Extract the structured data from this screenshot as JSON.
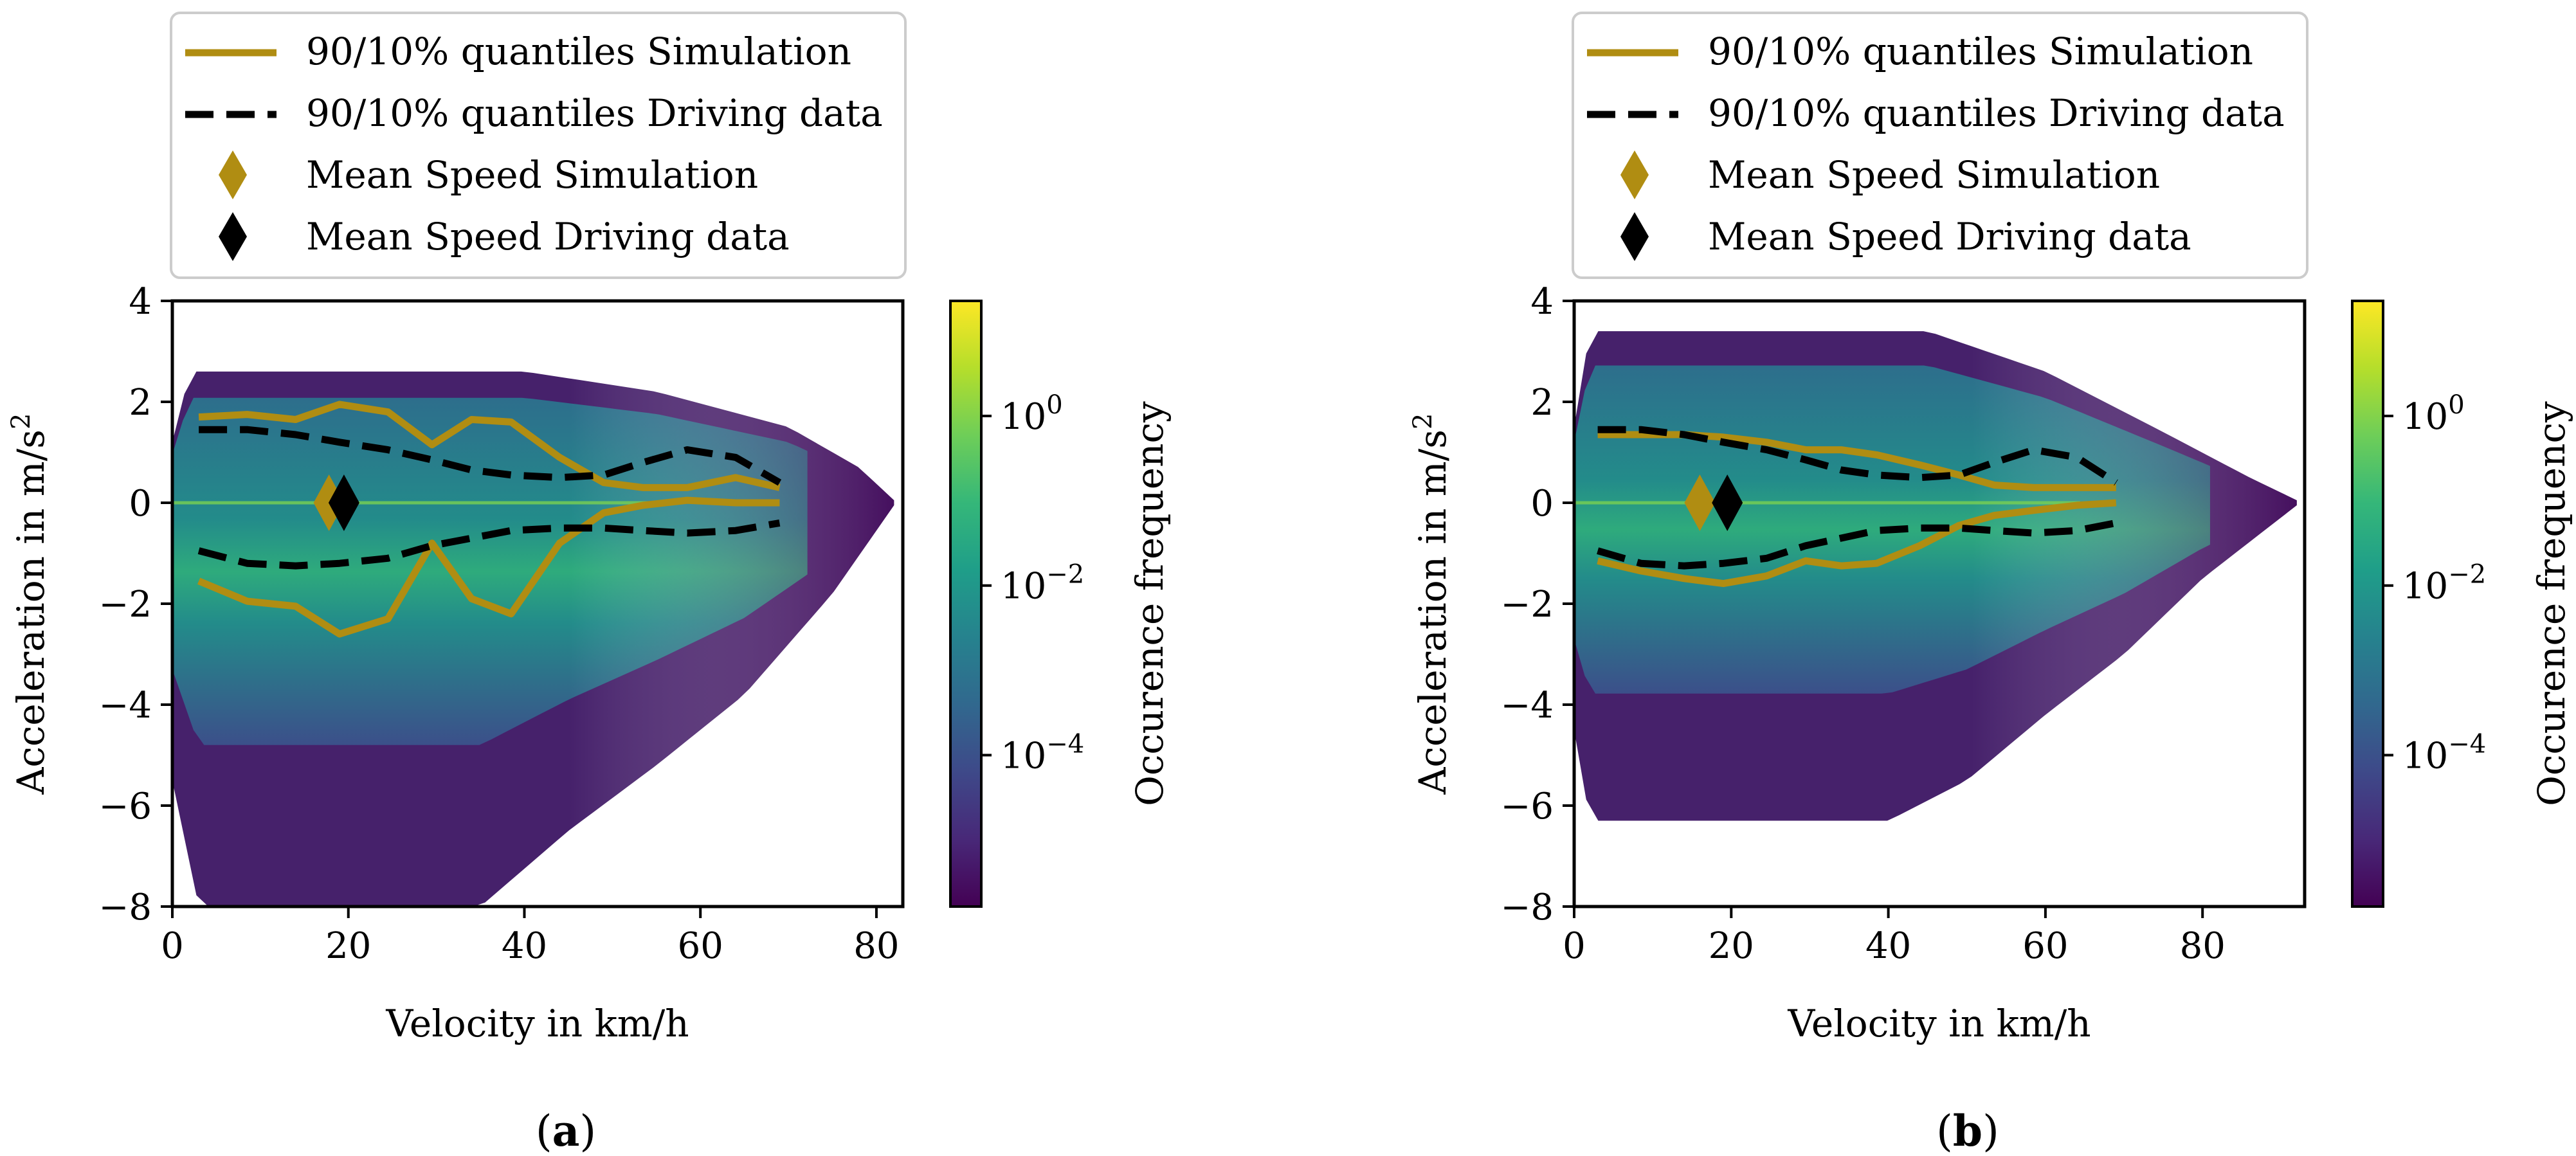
{
  "colors": {
    "simulation": "#B08D12",
    "driving": "#000000",
    "colormap": [
      "#440154",
      "#482878",
      "#3e4989",
      "#31688e",
      "#26828e",
      "#1f9e89",
      "#35b779",
      "#6ece58",
      "#b5de2b",
      "#fde725"
    ]
  },
  "chart_data": [
    {
      "type": "heatmap",
      "panel_label_open": "(",
      "panel_label_letter": "a",
      "panel_label_close": ")",
      "xlabel": "Velocity in km/h",
      "ylabel_main": "Acceleration in m/s",
      "ylabel_sup": "2",
      "xlim": [
        0,
        83
      ],
      "ylim": [
        -8,
        4
      ],
      "xticks": [
        0,
        20,
        40,
        60,
        80
      ],
      "yticks": [
        -8,
        -6,
        -4,
        -2,
        0,
        2,
        4
      ],
      "density": {
        "vmax": 82,
        "accel_max": [
          [
            0,
            1.2
          ],
          [
            2,
            2.6
          ],
          [
            40,
            2.6
          ],
          [
            55,
            2.2
          ],
          [
            70,
            1.5
          ],
          [
            78,
            0.7
          ],
          [
            82,
            0.05
          ]
        ],
        "accel_min": [
          [
            0,
            -5.5
          ],
          [
            3,
            -8.0
          ],
          [
            35,
            -8.0
          ],
          [
            45,
            -6.5
          ],
          [
            55,
            -5.2
          ],
          [
            65,
            -3.8
          ],
          [
            75,
            -1.8
          ],
          [
            82,
            -0.05
          ]
        ]
      },
      "colorbar": {
        "label": "Occurence frequency",
        "scale": "log",
        "ticks": [
          {
            "base": "10",
            "exp": "0",
            "frac": 0.81
          },
          {
            "base": "10",
            "exp": "−2",
            "frac": 0.53
          },
          {
            "base": "10",
            "exp": "−4",
            "frac": 0.25
          }
        ]
      },
      "legend": {
        "entries": [
          "90/10% quantiles Simulation",
          "90/10% quantiles Driving data",
          "Mean Speed Simulation",
          "Mean Speed Driving data"
        ]
      },
      "series": [
        {
          "name": "90% quantile Simulation",
          "style": "solid",
          "color": "simulation",
          "x": [
            3,
            8.5,
            14,
            19,
            24.5,
            29.5,
            34,
            38.5,
            44,
            49,
            53.5,
            58.5,
            64,
            69
          ],
          "y": [
            1.7,
            1.75,
            1.65,
            1.95,
            1.8,
            1.15,
            1.65,
            1.6,
            0.9,
            0.4,
            0.3,
            0.3,
            0.5,
            0.3
          ]
        },
        {
          "name": "10% quantile Simulation",
          "style": "solid",
          "color": "simulation",
          "x": [
            3,
            8.5,
            14,
            19,
            24.5,
            29.5,
            34,
            38.5,
            44,
            49,
            53.5,
            58.5,
            64,
            69
          ],
          "y": [
            -1.55,
            -1.95,
            -2.05,
            -2.6,
            -2.3,
            -0.8,
            -1.9,
            -2.2,
            -0.8,
            -0.2,
            -0.05,
            0.05,
            0.0,
            0.0
          ]
        },
        {
          "name": "90% quantile Driving data",
          "style": "dashed",
          "color": "driving",
          "x": [
            3,
            8.5,
            14,
            19,
            24.5,
            29.5,
            34,
            38.5,
            44,
            49,
            53.5,
            58.5,
            64,
            69
          ],
          "y": [
            1.45,
            1.45,
            1.35,
            1.2,
            1.05,
            0.85,
            0.65,
            0.55,
            0.5,
            0.55,
            0.8,
            1.05,
            0.9,
            0.4
          ]
        },
        {
          "name": "10% quantile Driving data",
          "style": "dashed",
          "color": "driving",
          "x": [
            3,
            8.5,
            14,
            19,
            24.5,
            29.5,
            34,
            38.5,
            44,
            49,
            53.5,
            58.5,
            64,
            69
          ],
          "y": [
            -0.95,
            -1.2,
            -1.25,
            -1.2,
            -1.1,
            -0.85,
            -0.7,
            -0.55,
            -0.5,
            -0.5,
            -0.55,
            -0.6,
            -0.55,
            -0.4
          ]
        }
      ],
      "markers": [
        {
          "name": "Mean Speed Simulation",
          "color": "simulation",
          "x": 17.8,
          "y": 0
        },
        {
          "name": "Mean Speed Driving data",
          "color": "driving",
          "x": 19.5,
          "y": 0
        }
      ]
    },
    {
      "type": "heatmap",
      "panel_label_open": "(",
      "panel_label_letter": "b",
      "panel_label_close": ")",
      "xlabel": "Velocity in km/h",
      "ylabel_main": "Acceleration in m/s",
      "ylabel_sup": "2",
      "xlim": [
        0,
        93
      ],
      "ylim": [
        -8,
        4
      ],
      "xticks": [
        0,
        20,
        40,
        60,
        80
      ],
      "yticks": [
        -8,
        -6,
        -4,
        -2,
        0,
        2,
        4
      ],
      "density": {
        "vmax": 92,
        "accel_max": [
          [
            0,
            1.5
          ],
          [
            2,
            3.4
          ],
          [
            45,
            3.4
          ],
          [
            60,
            2.6
          ],
          [
            75,
            1.4
          ],
          [
            86,
            0.5
          ],
          [
            92,
            0.05
          ]
        ],
        "accel_min": [
          [
            0,
            -4.5
          ],
          [
            2,
            -6.3
          ],
          [
            40,
            -6.3
          ],
          [
            50,
            -5.5
          ],
          [
            60,
            -4.2
          ],
          [
            70,
            -3.0
          ],
          [
            80,
            -1.5
          ],
          [
            92,
            -0.05
          ]
        ]
      },
      "colorbar": {
        "label": "Occurence frequency",
        "scale": "log",
        "ticks": [
          {
            "base": "10",
            "exp": "0",
            "frac": 0.81
          },
          {
            "base": "10",
            "exp": "−2",
            "frac": 0.53
          },
          {
            "base": "10",
            "exp": "−4",
            "frac": 0.25
          }
        ]
      },
      "legend": {
        "entries": [
          "90/10% quantiles Simulation",
          "90/10% quantiles Driving data",
          "Mean Speed Simulation",
          "Mean Speed Driving data"
        ]
      },
      "series": [
        {
          "name": "90% quantile Simulation",
          "style": "solid",
          "color": "simulation",
          "x": [
            3,
            8.5,
            14,
            19,
            24.5,
            29.5,
            34,
            38.5,
            44,
            49,
            53.5,
            58.5,
            64,
            69
          ],
          "y": [
            1.35,
            1.35,
            1.35,
            1.3,
            1.2,
            1.05,
            1.05,
            0.95,
            0.75,
            0.55,
            0.35,
            0.3,
            0.3,
            0.3
          ]
        },
        {
          "name": "10% quantile Simulation",
          "style": "solid",
          "color": "simulation",
          "x": [
            3,
            8.5,
            14,
            19,
            24.5,
            29.5,
            34,
            38.5,
            44,
            49,
            53.5,
            58.5,
            64,
            69
          ],
          "y": [
            -1.15,
            -1.35,
            -1.5,
            -1.6,
            -1.45,
            -1.15,
            -1.25,
            -1.2,
            -0.85,
            -0.45,
            -0.25,
            -0.15,
            -0.05,
            0.0
          ]
        },
        {
          "name": "90% quantile Driving data",
          "style": "dashed",
          "color": "driving",
          "x": [
            3,
            8.5,
            14,
            19,
            24.5,
            29.5,
            34,
            38.5,
            44,
            49,
            53.5,
            58.5,
            64,
            69
          ],
          "y": [
            1.45,
            1.45,
            1.35,
            1.2,
            1.05,
            0.85,
            0.65,
            0.55,
            0.5,
            0.55,
            0.8,
            1.05,
            0.9,
            0.4
          ]
        },
        {
          "name": "10% quantile Driving data",
          "style": "dashed",
          "color": "driving",
          "x": [
            3,
            8.5,
            14,
            19,
            24.5,
            29.5,
            34,
            38.5,
            44,
            49,
            53.5,
            58.5,
            64,
            69
          ],
          "y": [
            -0.95,
            -1.2,
            -1.25,
            -1.2,
            -1.1,
            -0.85,
            -0.7,
            -0.55,
            -0.5,
            -0.5,
            -0.55,
            -0.6,
            -0.55,
            -0.4
          ]
        }
      ],
      "markers": [
        {
          "name": "Mean Speed Simulation",
          "color": "simulation",
          "x": 16.0,
          "y": 0
        },
        {
          "name": "Mean Speed Driving data",
          "color": "driving",
          "x": 19.5,
          "y": 0
        }
      ]
    }
  ]
}
